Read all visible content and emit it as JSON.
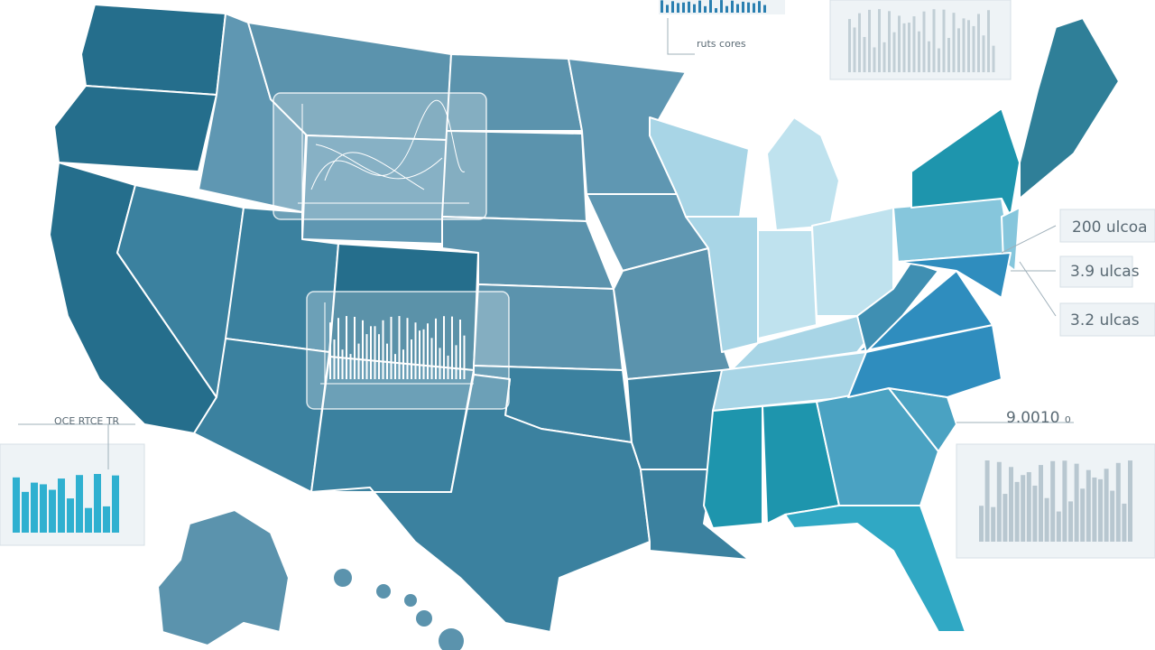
{
  "annotations": [
    "200 ulcoa",
    "3.9 ulcas",
    "3.2 ulcas",
    "9.0010 ₀",
    "OCE RTCE TR",
    "ruts cores"
  ]
}
